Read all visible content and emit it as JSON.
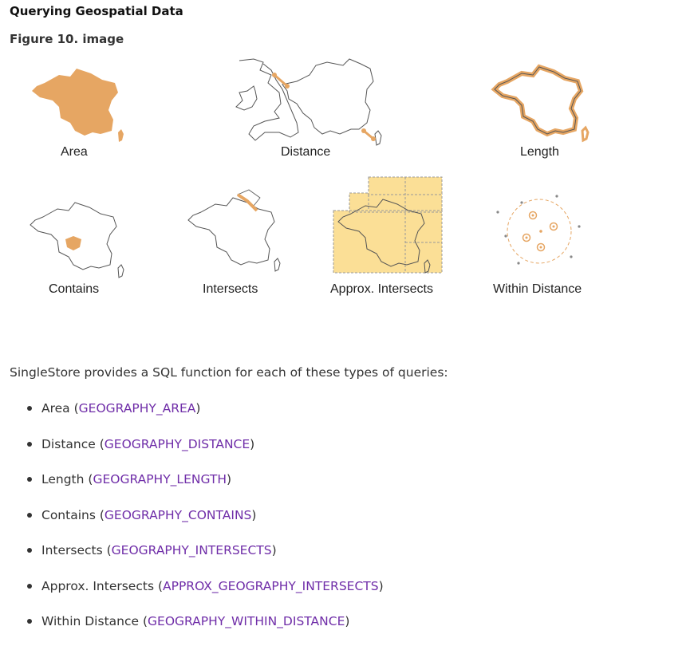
{
  "heading": "Querying Geospatial Data",
  "figure_caption": "Figure 10. image",
  "figure": {
    "labels": {
      "area": "Area",
      "distance": "Distance",
      "length": "Length",
      "contains": "Contains",
      "intersects": "Intersects",
      "approx_intersects": "Approx. Intersects",
      "within_distance": "Within Distance"
    },
    "colors": {
      "fill": "#e6a663",
      "stroke": "#555555",
      "grid_fill": "#fbdf96",
      "grid_stroke": "#999999",
      "dot": "#888888"
    }
  },
  "intro": "SingleStore provides a SQL function for each of these types of queries:",
  "functions": [
    {
      "label": "Area",
      "fn": "GEOGRAPHY_AREA"
    },
    {
      "label": "Distance",
      "fn": "GEOGRAPHY_DISTANCE"
    },
    {
      "label": "Length",
      "fn": "GEOGRAPHY_LENGTH"
    },
    {
      "label": "Contains",
      "fn": "GEOGRAPHY_CONTAINS"
    },
    {
      "label": "Intersects",
      "fn": "GEOGRAPHY_INTERSECTS"
    },
    {
      "label": "Approx. Intersects",
      "fn": "APPROX_GEOGRAPHY_INTERSECTS"
    },
    {
      "label": "Within Distance",
      "fn": "GEOGRAPHY_WITHIN_DISTANCE"
    }
  ]
}
